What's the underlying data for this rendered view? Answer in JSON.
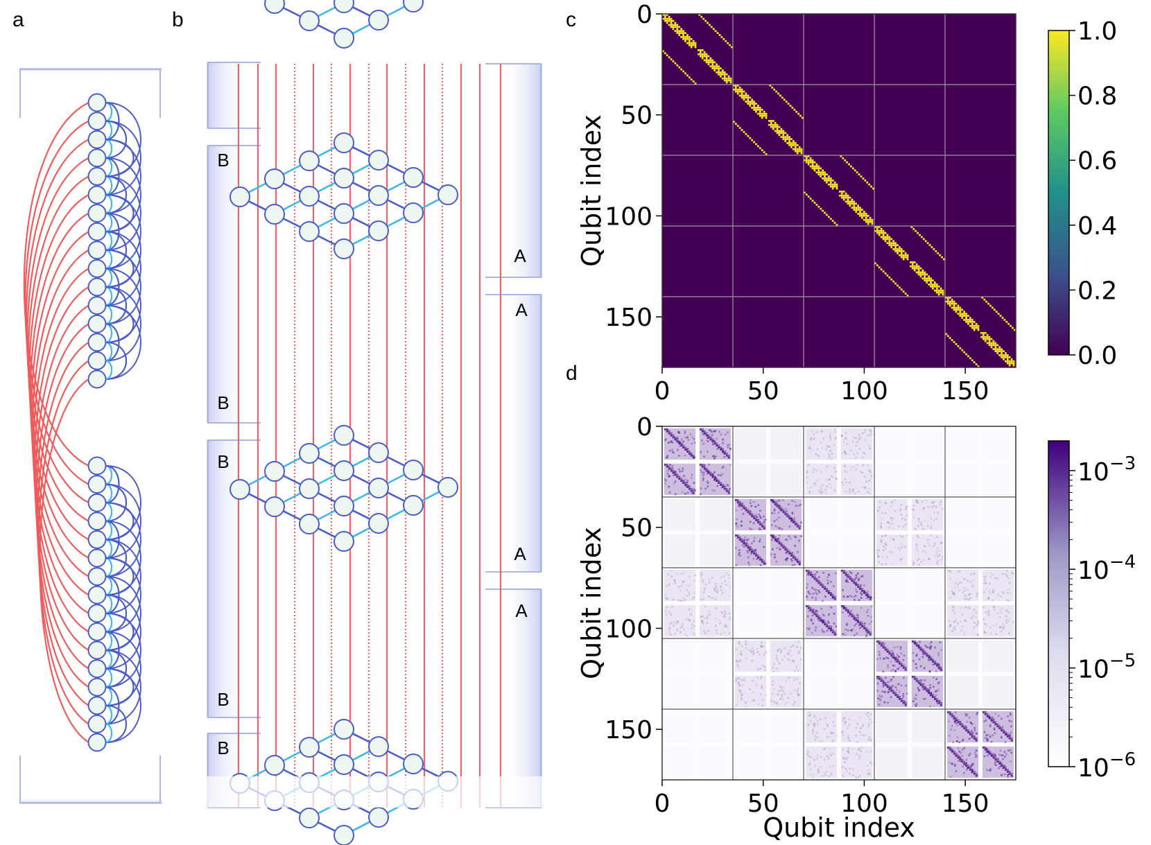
{
  "panel_labels": {
    "a": "a",
    "b": "b",
    "c": "c",
    "d": "d"
  },
  "panel_b": {
    "cell_labels": [
      {
        "text": "B",
        "side": "left"
      },
      {
        "text": "A",
        "side": "right"
      },
      {
        "text": "B",
        "side": "left"
      },
      {
        "text": "B",
        "side": "left"
      },
      {
        "text": "A",
        "side": "right"
      },
      {
        "text": "A",
        "side": "right"
      },
      {
        "text": "B",
        "side": "left"
      },
      {
        "text": "A",
        "side": "right"
      },
      {
        "text": "B",
        "side": "left"
      }
    ]
  },
  "colors": {
    "inter_edge": "#ef5b5b",
    "intra_edge_dark": "#4a5cc9",
    "intra_edge_light": "#3bb8e8",
    "node_fill": "#eef6f2",
    "node_stroke": "#4a5cc9",
    "viridis_low": "#440154",
    "viridis_high": "#fde725",
    "purples_high": "#3f007d"
  },
  "chart_data": [
    {
      "panel": "c",
      "type": "heatmap",
      "title": "",
      "xlabel": "",
      "ylabel": "Qubit index",
      "xlim": [
        0,
        175
      ],
      "ylim": [
        175,
        0
      ],
      "xticks": [
        "0",
        "50",
        "100",
        "150"
      ],
      "yticks": [
        "0",
        "50",
        "100",
        "150"
      ],
      "block_size": 35,
      "grid": true,
      "colorbar": {
        "scale": "linear",
        "range": [
          0.0,
          1.0
        ],
        "ticks": [
          "0.0",
          "0.2",
          "0.4",
          "0.6",
          "0.8",
          "1.0"
        ]
      },
      "description_values": "binary adjacency matrix (0 or 1) with block-diagonal dense sub-blocks and off-diagonal stripes"
    },
    {
      "panel": "d",
      "type": "heatmap",
      "title": "",
      "xlabel": "Qubit index",
      "ylabel": "Qubit index",
      "xlim": [
        0,
        175
      ],
      "ylim": [
        175,
        0
      ],
      "xticks": [
        "0",
        "50",
        "100",
        "150"
      ],
      "yticks": [
        "0",
        "50",
        "100",
        "150"
      ],
      "block_size": 35,
      "grid": true,
      "colorbar": {
        "scale": "log",
        "range": [
          1e-06,
          0.002
        ],
        "ticks": [
          "10",
          "10",
          "10",
          "10"
        ],
        "tick_exponents": [
          "−6",
          "−5",
          "−4",
          "−3"
        ]
      }
    }
  ]
}
